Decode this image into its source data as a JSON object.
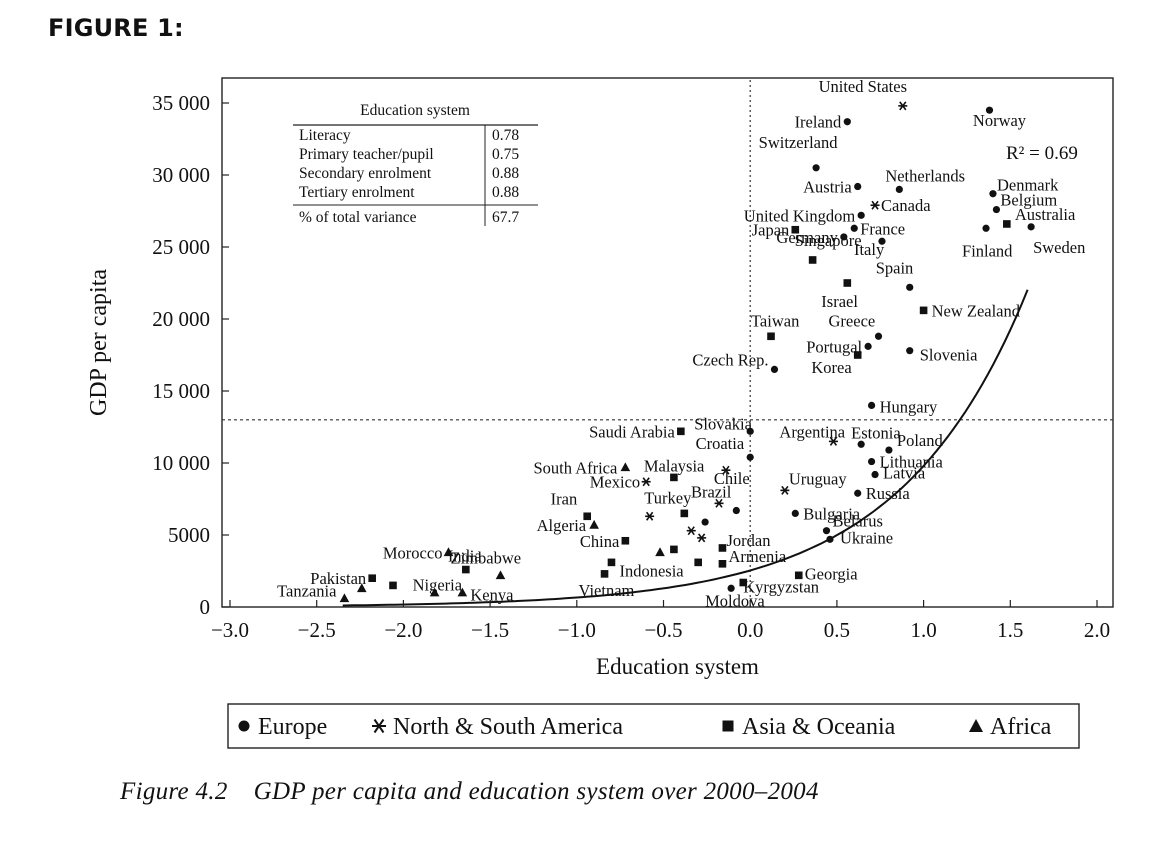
{
  "figure_heading": "FIGURE 1:",
  "caption": {
    "number": "Figure 4.2",
    "text": "GDP per capita and education system over 2000–2004"
  },
  "chart_data": {
    "type": "scatter",
    "title": "",
    "xlabel": "Education system",
    "ylabel": "GDP per capita",
    "xlim": [
      -3.0,
      2.0
    ],
    "ylim": [
      0,
      37000
    ],
    "x_ticks": [
      -3.0,
      -2.5,
      -2.0,
      -1.5,
      -1.0,
      -0.5,
      0.0,
      0.5,
      1.0,
      1.5,
      2.0
    ],
    "x_tick_labels": [
      "−3.0",
      "−2.5",
      "−2.0",
      "−1.5",
      "−1.0",
      "−0.5",
      "0.0",
      "0.5",
      "1.0",
      "1.5",
      "2.0"
    ],
    "y_ticks": [
      0,
      5000,
      10000,
      15000,
      20000,
      25000,
      30000,
      35000
    ],
    "y_tick_labels": [
      "0",
      "5000",
      "10 000",
      "15 000",
      "20 000",
      "25 000",
      "30 000",
      "35 000"
    ],
    "grid": false,
    "reference_lines": {
      "vertical_x": 0.0,
      "horizontal_y": 13000
    },
    "trend": {
      "type": "exponential",
      "label": "R² = 0.69",
      "a": 2540,
      "b": 1.35,
      "x_start": -2.35,
      "x_end": 1.6
    },
    "legend": {
      "placement": "bottom",
      "entries": [
        {
          "marker": "circle",
          "label": "Europe"
        },
        {
          "marker": "star",
          "label": "North & South America"
        },
        {
          "marker": "square",
          "label": "Asia & Oceania"
        },
        {
          "marker": "triangle",
          "label": "Africa"
        }
      ]
    },
    "inset_table": {
      "title": "Education system",
      "rows": [
        {
          "label": "Literacy",
          "value": "0.78"
        },
        {
          "label": "Primary teacher/pupil",
          "value": "0.75"
        },
        {
          "label": "Secondary enrolment",
          "value": "0.88"
        },
        {
          "label": "Tertiary enrolment",
          "value": "0.88"
        }
      ],
      "footer": {
        "label": "% of total variance",
        "value": "67.7"
      }
    },
    "series": [
      {
        "name": "Europe",
        "marker": "circle",
        "points": [
          {
            "label": "Ireland",
            "x": 0.56,
            "y": 33700
          },
          {
            "label": "Norway",
            "x": 1.38,
            "y": 34500
          },
          {
            "label": "Switzerland",
            "x": 0.38,
            "y": 30500
          },
          {
            "label": "Austria",
            "x": 0.62,
            "y": 29200
          },
          {
            "label": "Netherlands",
            "x": 0.86,
            "y": 29000
          },
          {
            "label": "Denmark",
            "x": 1.4,
            "y": 28700
          },
          {
            "label": "Belgium",
            "x": 1.42,
            "y": 27600
          },
          {
            "label": "United Kingdom",
            "x": 0.64,
            "y": 27200
          },
          {
            "label": "France",
            "x": 0.6,
            "y": 26300
          },
          {
            "label": "Germany",
            "x": 0.54,
            "y": 25700
          },
          {
            "label": "Italy",
            "x": 0.76,
            "y": 25400
          },
          {
            "label": "Finland",
            "x": 1.36,
            "y": 26300
          },
          {
            "label": "Sweden",
            "x": 1.62,
            "y": 26400
          },
          {
            "label": "Spain",
            "x": 0.92,
            "y": 22200
          },
          {
            "label": "Greece",
            "x": 0.74,
            "y": 18800
          },
          {
            "label": "Portugal",
            "x": 0.68,
            "y": 18100
          },
          {
            "label": "Slovenia",
            "x": 0.92,
            "y": 17800
          },
          {
            "label": "Czech Rep.",
            "x": 0.14,
            "y": 16500
          },
          {
            "label": "Hungary",
            "x": 0.7,
            "y": 14000
          },
          {
            "label": "Slovakia",
            "x": 0.0,
            "y": 12200
          },
          {
            "label": "Estonia",
            "x": 0.64,
            "y": 11300
          },
          {
            "label": "Poland",
            "x": 0.8,
            "y": 10900
          },
          {
            "label": "Croatia",
            "x": 0.0,
            "y": 10400
          },
          {
            "label": "Lithuania",
            "x": 0.7,
            "y": 10100
          },
          {
            "label": "Latvia",
            "x": 0.72,
            "y": 9200
          },
          {
            "label": "Russia",
            "x": 0.62,
            "y": 7900
          },
          {
            "label": "Bulgaria",
            "x": 0.26,
            "y": 6500
          },
          {
            "label": "Belarus",
            "x": 0.44,
            "y": 5300
          },
          {
            "label": "Ukraine",
            "x": 0.46,
            "y": 4700
          },
          {
            "label": "Moldova",
            "x": -0.11,
            "y": 1300
          },
          {
            "label": "",
            "x": -0.08,
            "y": 6700
          },
          {
            "label": "",
            "x": -0.26,
            "y": 5900
          }
        ]
      },
      {
        "name": "North & South America",
        "marker": "star",
        "points": [
          {
            "label": "United States",
            "x": 0.88,
            "y": 34800
          },
          {
            "label": "Canada",
            "x": 0.72,
            "y": 27900
          },
          {
            "label": "Argentina",
            "x": 0.48,
            "y": 11500
          },
          {
            "label": "Chile",
            "x": -0.14,
            "y": 9500
          },
          {
            "label": "Mexico",
            "x": -0.6,
            "y": 8700
          },
          {
            "label": "Uruguay",
            "x": 0.2,
            "y": 8100
          },
          {
            "label": "Brazil",
            "x": -0.18,
            "y": 7200
          },
          {
            "label": "",
            "x": -0.58,
            "y": 6300
          },
          {
            "label": "",
            "x": -0.34,
            "y": 5300
          },
          {
            "label": "",
            "x": -0.28,
            "y": 4800
          }
        ]
      },
      {
        "name": "Asia & Oceania",
        "marker": "square",
        "points": [
          {
            "label": "Japan",
            "x": 0.26,
            "y": 26200
          },
          {
            "label": "Australia",
            "x": 1.48,
            "y": 26600
          },
          {
            "label": "Singapore",
            "x": 0.36,
            "y": 24100
          },
          {
            "label": "Israel",
            "x": 0.56,
            "y": 22500
          },
          {
            "label": "New Zealand",
            "x": 1.0,
            "y": 20600
          },
          {
            "label": "Taiwan",
            "x": 0.12,
            "y": 18800
          },
          {
            "label": "Korea",
            "x": 0.62,
            "y": 17500
          },
          {
            "label": "Saudi Arabia",
            "x": -0.4,
            "y": 12200
          },
          {
            "label": "Malaysia",
            "x": -0.44,
            "y": 9000
          },
          {
            "label": "Iran",
            "x": -0.94,
            "y": 6300
          },
          {
            "label": "Turkey",
            "x": -0.38,
            "y": 6500
          },
          {
            "label": "China",
            "x": -0.72,
            "y": 4600
          },
          {
            "label": "Jordan",
            "x": -0.16,
            "y": 4100
          },
          {
            "label": "Armenia",
            "x": -0.16,
            "y": 3000
          },
          {
            "label": "Indonesia",
            "x": -0.8,
            "y": 3100
          },
          {
            "label": "Vietnam",
            "x": -0.84,
            "y": 2300
          },
          {
            "label": "Georgia",
            "x": 0.28,
            "y": 2200
          },
          {
            "label": "Kyrgyzstan",
            "x": -0.04,
            "y": 1700
          },
          {
            "label": "India",
            "x": -1.64,
            "y": 2600
          },
          {
            "label": "Pakistan",
            "x": -2.18,
            "y": 2000
          },
          {
            "label": "",
            "x": -2.06,
            "y": 1500
          },
          {
            "label": "",
            "x": -0.44,
            "y": 4000
          },
          {
            "label": "",
            "x": -0.3,
            "y": 3100
          }
        ]
      },
      {
        "name": "Africa",
        "marker": "triangle",
        "points": [
          {
            "label": "South Africa",
            "x": -0.72,
            "y": 9700
          },
          {
            "label": "Algeria",
            "x": -0.9,
            "y": 5700
          },
          {
            "label": "Morocco",
            "x": -1.74,
            "y": 3800
          },
          {
            "label": "Zimbabwe",
            "x": -1.44,
            "y": 2200
          },
          {
            "label": "Nigeria",
            "x": -1.82,
            "y": 1000
          },
          {
            "label": "Kenya",
            "x": -1.66,
            "y": 1000
          },
          {
            "label": "Tanzania",
            "x": -2.34,
            "y": 600
          },
          {
            "label": "",
            "x": -2.24,
            "y": 1300
          },
          {
            "label": "",
            "x": -0.52,
            "y": 3800
          }
        ]
      }
    ]
  }
}
